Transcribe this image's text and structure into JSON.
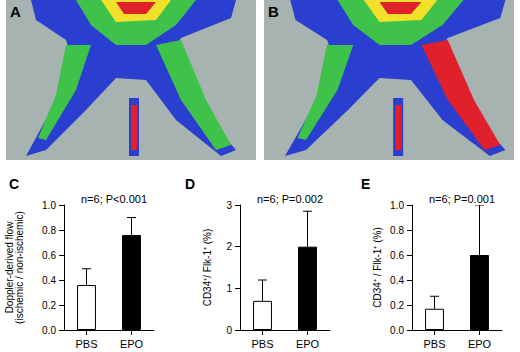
{
  "panels": [
    {
      "label": "A"
    },
    {
      "label": "B"
    }
  ],
  "chart_data": [
    {
      "type": "bar",
      "panel": "C",
      "title": "n=6; P<0.001",
      "y_label": "Doppler-derived flow\n(ischemic / non-ischemic)",
      "categories": [
        "PBS",
        "EPO"
      ],
      "values": [
        0.36,
        0.76
      ],
      "errors": [
        0.13,
        0.14
      ],
      "colors": [
        "#ffffff",
        "#000000"
      ],
      "ylim": [
        0,
        1.0
      ],
      "yticks": [
        {
          "value": 0,
          "label": "0.0"
        },
        0.2,
        0.4,
        0.6,
        0.8,
        {
          "value": 1.0,
          "label": "1.0"
        }
      ],
      "grid": false
    },
    {
      "type": "bar",
      "panel": "D",
      "title": "n=6; P=0.002",
      "y_label": "CD34⁺/ Flk-1⁺ (%)",
      "categories": [
        "PBS",
        "EPO"
      ],
      "values": [
        0.7,
        2.0
      ],
      "errors": [
        0.5,
        0.85
      ],
      "colors": [
        "#ffffff",
        "#000000"
      ],
      "ylim": [
        0,
        3
      ],
      "yticks": [
        0,
        1,
        2,
        3
      ],
      "grid": false
    },
    {
      "type": "bar",
      "panel": "E",
      "title": "n=6; P=0.001",
      "y_label": "CD34⁺ / Flk-1⁺ (%)",
      "categories": [
        "PBS",
        "EPO"
      ],
      "values": [
        0.17,
        0.6
      ],
      "errors": [
        0.1,
        0.4
      ],
      "colors": [
        "#ffffff",
        "#000000"
      ],
      "ylim": [
        0,
        1.0
      ],
      "yticks": [
        {
          "value": 0,
          "label": "0.0"
        },
        0.2,
        0.4,
        0.6,
        0.8,
        {
          "value": 1.0,
          "label": "1.0"
        }
      ],
      "grid": false
    }
  ]
}
